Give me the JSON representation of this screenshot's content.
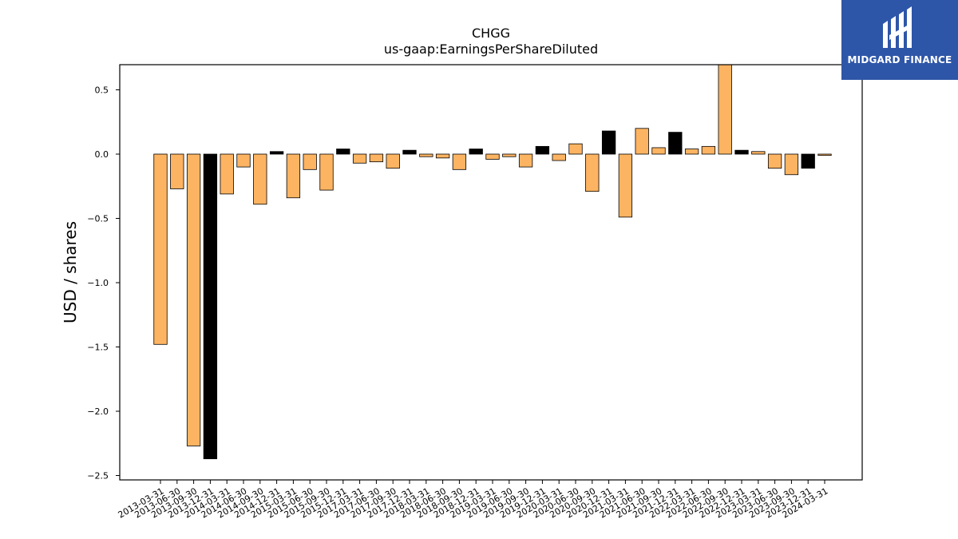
{
  "logo": {
    "text": "MIDGARD FINANCE",
    "background": "#2e56a8"
  },
  "chart_data": {
    "type": "bar",
    "title": "CHGG",
    "subtitle": "us-gaap:EarningsPerShareDiluted",
    "ylabel": "USD / shares",
    "xlabel": "",
    "ylim": [
      -2.55,
      0.7
    ],
    "yticks": [
      0.5,
      0.0,
      -0.5,
      -1.0,
      -1.5,
      -2.0,
      -2.5
    ],
    "ytick_labels": [
      "0.5",
      "0.0",
      "−0.5",
      "−1.0",
      "−1.5",
      "−2.0",
      "−2.5"
    ],
    "grid": false,
    "colors": {
      "quarter": "#fdb462",
      "annual": "#000000",
      "edge": "#000000"
    },
    "categories": [
      "2013-03-31",
      "2013-06-30",
      "2013-09-30",
      "2013-12-31",
      "2014-03-31",
      "2014-06-30",
      "2014-09-30",
      "2014-12-31",
      "2015-03-31",
      "2015-06-30",
      "2015-09-30",
      "2015-12-31",
      "2017-03-31",
      "2017-06-30",
      "2017-09-30",
      "2017-12-31",
      "2018-03-31",
      "2018-06-30",
      "2018-09-30",
      "2018-12-31",
      "2019-03-31",
      "2019-06-30",
      "2019-09-30",
      "2019-12-31",
      "2020-03-31",
      "2020-06-30",
      "2020-09-30",
      "2020-12-31",
      "2021-03-31",
      "2021-06-30",
      "2021-09-30",
      "2021-12-31",
      "2022-03-31",
      "2022-06-30",
      "2022-09-30",
      "2022-12-31",
      "2023-03-31",
      "2023-06-30",
      "2023-09-30",
      "2023-12-31",
      "2024-03-31"
    ],
    "values": [
      -1.48,
      -0.27,
      -2.27,
      -2.37,
      -0.31,
      -0.1,
      -0.39,
      0.02,
      -0.34,
      -0.12,
      -0.28,
      0.04,
      -0.07,
      -0.06,
      -0.11,
      0.03,
      -0.02,
      -0.03,
      -0.12,
      0.04,
      -0.04,
      -0.02,
      -0.1,
      0.06,
      -0.05,
      0.08,
      -0.29,
      0.18,
      -0.49,
      0.2,
      0.05,
      0.17,
      0.04,
      0.06,
      0.75,
      0.03,
      0.02,
      -0.11,
      -0.16,
      -0.11,
      -0.01
    ],
    "is_annual": [
      false,
      false,
      false,
      true,
      false,
      false,
      false,
      true,
      false,
      false,
      false,
      true,
      false,
      false,
      false,
      true,
      false,
      false,
      false,
      true,
      false,
      false,
      false,
      true,
      false,
      false,
      false,
      true,
      false,
      false,
      false,
      true,
      false,
      false,
      false,
      true,
      false,
      false,
      false,
      true,
      false
    ]
  }
}
